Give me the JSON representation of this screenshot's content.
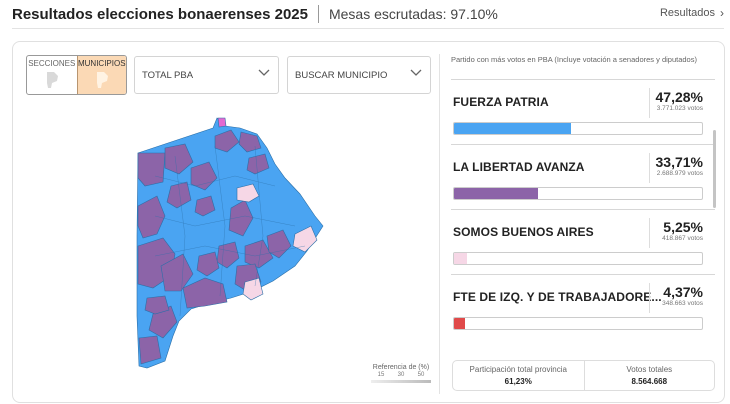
{
  "header": {
    "title": "Resultados elecciones bonaerenses 2025",
    "subtitle": "Mesas escrutadas: 97.10%",
    "link_label": "Resultados"
  },
  "filters": {
    "toggle": [
      {
        "label": "SECCIONES",
        "active": false
      },
      {
        "label": "MUNICIPIOS",
        "active": true
      }
    ],
    "region_select": "TOTAL PBA",
    "municipality_select": "BUSCAR MUNICIPIO"
  },
  "map": {
    "reference_label": "Referencia de (%)",
    "reference_scale": [
      "15",
      "30",
      "50"
    ],
    "colors": {
      "fuerza_patria": "#4aa4f2",
      "la_libertad_avanza": "#8c64a8",
      "somos": "#f6d7e6",
      "other": "#e36ad1"
    }
  },
  "results": {
    "title": "Partido con más votos en PBA (Incluye votación a senadores y diputados)",
    "parties": [
      {
        "name": "FUERZA PATRIA",
        "percent": "47,28%",
        "votes": "3.771.023 votos",
        "share": 47.28,
        "color": "#4aa4f2"
      },
      {
        "name": "LA LIBERTAD AVANZA",
        "percent": "33,71%",
        "votes": "2.688.979 votos",
        "share": 33.71,
        "color": "#8c64a8"
      },
      {
        "name": "SOMOS BUENOS AIRES",
        "percent": "5,25%",
        "votes": "418.867 votos",
        "share": 5.25,
        "color": "#f6d7e6"
      },
      {
        "name": "FTE DE IZQ. Y DE TRABAJADORE...",
        "percent": "4,37%",
        "votes": "348.663 votos",
        "share": 4.37,
        "color": "#e04a4a"
      }
    ]
  },
  "summary": {
    "participation_label": "Participación total provincia",
    "participation_value": "61,23%",
    "total_label": "Votos totales",
    "total_value": "8.564.668"
  }
}
